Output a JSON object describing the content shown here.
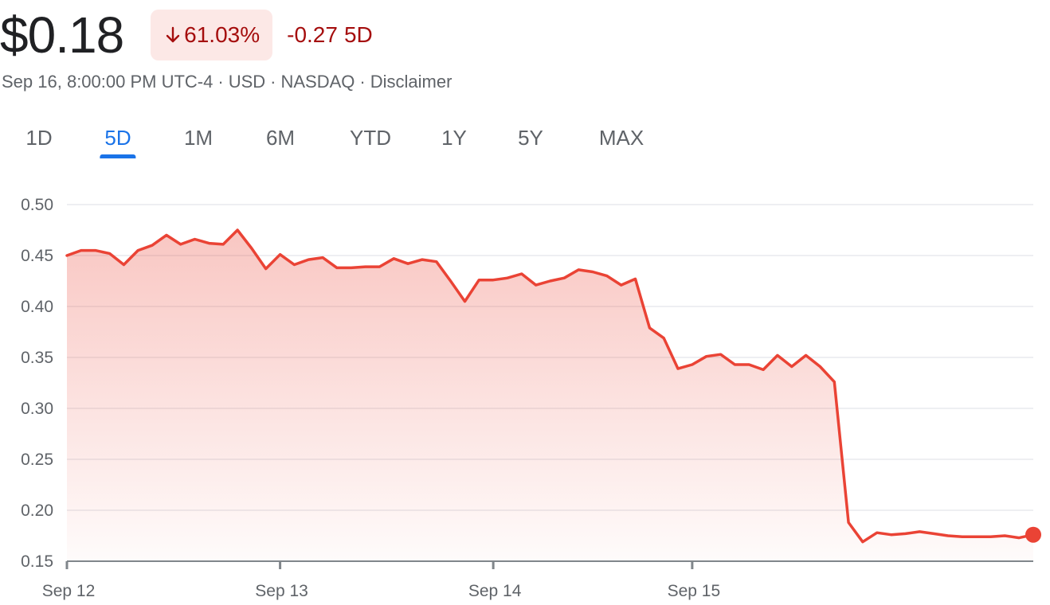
{
  "quote": {
    "price": "$0.18",
    "change_percent": "61.03%",
    "change_abs": "-0.27",
    "change_period": "5D",
    "timestamp": "Sep 16, 8:00:00 PM UTC-4",
    "currency": "USD",
    "exchange": "NASDAQ",
    "disclaimer": "Disclaimer"
  },
  "colors": {
    "negative": "#a50e0e",
    "negative_bg": "#fce8e6",
    "line": "#ea4335",
    "accent": "#1a73e8"
  },
  "icons": {
    "change_direction": "arrow-down-icon"
  },
  "tabs": [
    {
      "label": "1D",
      "active": false
    },
    {
      "label": "5D",
      "active": true
    },
    {
      "label": "1M",
      "active": false
    },
    {
      "label": "6M",
      "active": false
    },
    {
      "label": "YTD",
      "active": false
    },
    {
      "label": "1Y",
      "active": false
    },
    {
      "label": "5Y",
      "active": false
    },
    {
      "label": "MAX",
      "active": false
    }
  ],
  "chart_data": {
    "type": "area",
    "title": "",
    "xlabel": "",
    "ylabel": "",
    "ylim": [
      0.15,
      0.5
    ],
    "yticks": [
      0.5,
      0.45,
      0.4,
      0.35,
      0.3,
      0.25,
      0.2,
      0.15
    ],
    "ytick_labels": [
      "0.50",
      "0.45",
      "0.40",
      "0.35",
      "0.30",
      "0.25",
      "0.20",
      "0.15"
    ],
    "x_labels": [
      {
        "label": "Sep 12",
        "index": 0
      },
      {
        "label": "Sep 13",
        "index": 15
      },
      {
        "label": "Sep 14",
        "index": 30
      },
      {
        "label": "Sep 15",
        "index": 44
      }
    ],
    "grid": true,
    "series": [
      {
        "values": [
          0.45,
          0.455,
          0.455,
          0.452,
          0.441,
          0.455,
          0.46,
          0.47,
          0.461,
          0.466,
          0.462,
          0.461,
          0.475,
          0.457,
          0.437,
          0.451,
          0.441,
          0.446,
          0.448,
          0.438,
          0.438,
          0.439,
          0.439,
          0.447,
          0.442,
          0.446,
          0.444,
          0.425,
          0.405,
          0.426,
          0.426,
          0.428,
          0.432,
          0.421,
          0.425,
          0.428,
          0.436,
          0.434,
          0.43,
          0.421,
          0.427,
          0.379,
          0.369,
          0.339,
          0.343,
          0.351,
          0.353,
          0.343,
          0.343,
          0.338,
          0.352,
          0.341,
          0.352,
          0.341,
          0.326,
          0.188,
          0.169,
          0.178,
          0.176,
          0.177,
          0.179,
          0.177,
          0.175,
          0.174,
          0.174,
          0.174,
          0.175,
          0.173,
          0.176
        ]
      }
    ]
  }
}
